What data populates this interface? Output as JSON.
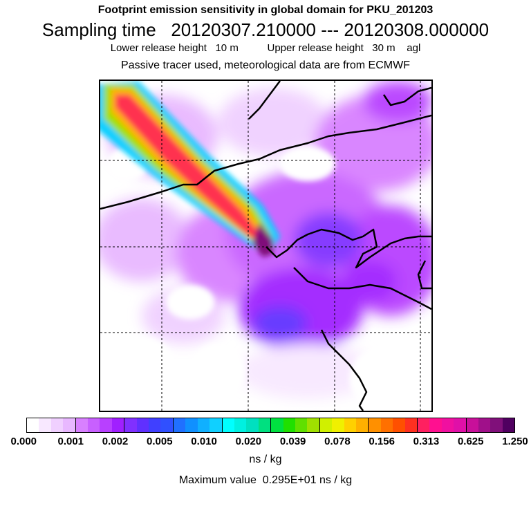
{
  "titles": {
    "line1": "Footprint emission sensitivity in global domain for PKU_201203",
    "line2": "Sampling time   20120307.210000 --- 20120308.000000",
    "line3": "Lower release height   10 m          Upper release height   30 m    agl",
    "line4": "Passive tracer used, meteorological data are from ECMWF"
  },
  "colorbar": {
    "tick_labels": [
      "0.000",
      "0.001",
      "0.002",
      "0.005",
      "0.010",
      "0.020",
      "0.039",
      "0.078",
      "0.156",
      "0.313",
      "0.625",
      "1.250"
    ],
    "colors": [
      "#ffffff",
      "#f8e8ff",
      "#f0d0ff",
      "#e8b8ff",
      "#d880ff",
      "#c860ff",
      "#b840ff",
      "#a020ff",
      "#8030ff",
      "#6030ff",
      "#4040ff",
      "#3050ff",
      "#2070ff",
      "#1090ff",
      "#10b0ff",
      "#10d0ff",
      "#00ffff",
      "#00f0e0",
      "#00e0c0",
      "#00e080",
      "#00e040",
      "#20e000",
      "#60e000",
      "#a0e000",
      "#d0f000",
      "#f0f000",
      "#ffd000",
      "#ffb000",
      "#ff9000",
      "#ff7000",
      "#ff5000",
      "#ff3020",
      "#ff2060",
      "#ff1090",
      "#f010a0",
      "#e010a8",
      "#c8109a",
      "#a0108a",
      "#80107a",
      "#500060"
    ],
    "units": "ns / kg"
  },
  "max_value_text": "Maximum value  0.295E+01 ns / kg"
}
